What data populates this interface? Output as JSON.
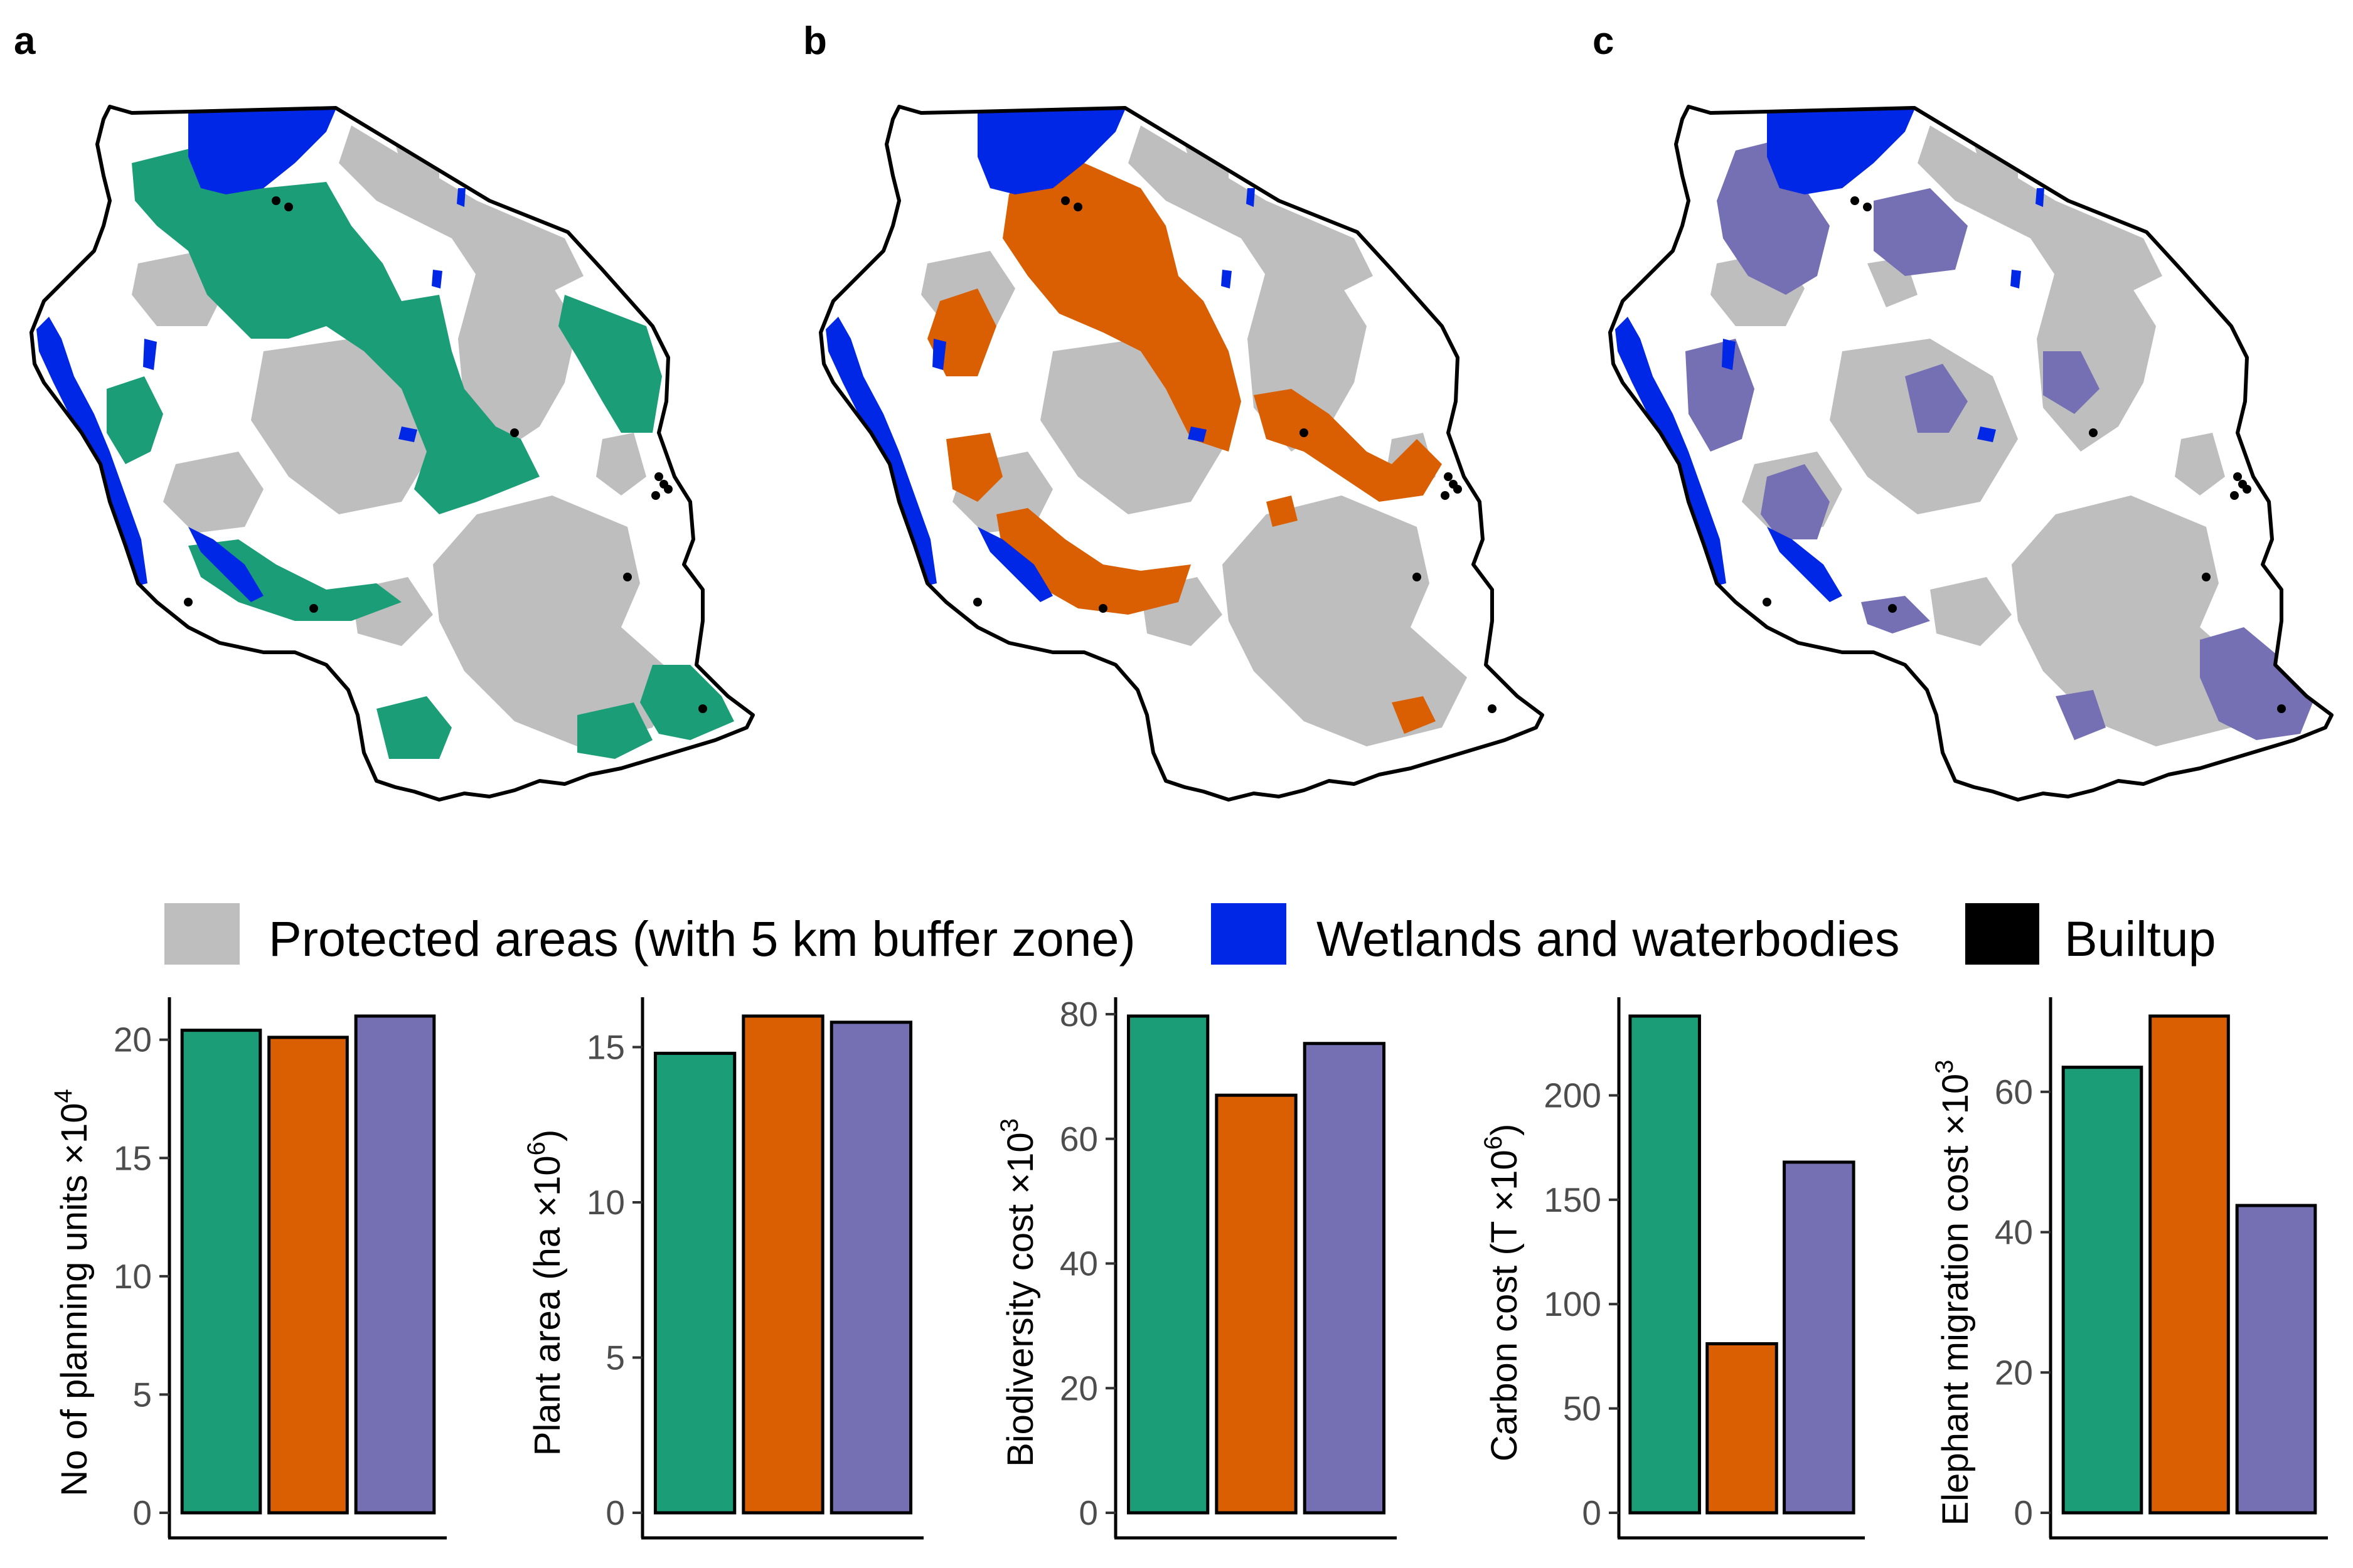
{
  "panels": {
    "a": {
      "letter": "a"
    },
    "b": {
      "letter": "b"
    },
    "c": {
      "letter": "c"
    }
  },
  "scenario_colors": [
    "#1b9e77",
    "#d95f02",
    "#7570b3"
  ],
  "map_colors": {
    "background": "#ffffff",
    "protected": "#bebebe",
    "water": "#0026e6",
    "builtup": "#000000",
    "outline": "#000000"
  },
  "legend": {
    "items": [
      {
        "label": "Protected areas (with 5 km buffer zone)",
        "color": "#bebebe"
      },
      {
        "label": "Wetlands and waterbodies",
        "color": "#0026e6"
      },
      {
        "label": "Builtup",
        "color": "#000000"
      }
    ]
  },
  "chart_data": [
    {
      "type": "bar",
      "ylabel": "No of planning units ×10^4",
      "ylabel_main": "No of planning units ",
      "ylabel_mult": "×10",
      "ylabel_exp": "4",
      "values": [
        20.4,
        20.1,
        21.0
      ],
      "ylim": [
        0,
        21.0
      ],
      "ticks": [
        0,
        5,
        10,
        15,
        20
      ],
      "tick_labels": [
        "0",
        "5",
        "10",
        "15",
        "20"
      ]
    },
    {
      "type": "bar",
      "ylabel": "Plant area (ha ×10^6)",
      "ylabel_main": "Plant area (ha ",
      "ylabel_mult": "×10",
      "ylabel_exp": "6",
      "ylabel_close": ")",
      "values": [
        14.8,
        16.0,
        15.8
      ],
      "ylim": [
        0,
        16.0
      ],
      "ticks": [
        0,
        5,
        10,
        15
      ],
      "tick_labels": [
        "0",
        "5",
        "10",
        "15"
      ]
    },
    {
      "type": "bar",
      "ylabel": "Biodiversity cost ×10^3",
      "ylabel_main": "Biodiversity cost ",
      "ylabel_mult": "×10",
      "ylabel_exp": "3",
      "values": [
        79.7,
        67.0,
        75.3
      ],
      "ylim": [
        0,
        79.7
      ],
      "ticks": [
        0,
        20,
        40,
        60,
        80
      ],
      "tick_labels": [
        "0",
        "20",
        "40",
        "60",
        "80"
      ]
    },
    {
      "type": "bar",
      "ylabel": "Carbon cost (T ×10^6)",
      "ylabel_main": "Carbon cost (T ",
      "ylabel_mult": "×10",
      "ylabel_exp": "6",
      "ylabel_close": ")",
      "values": [
        238,
        81,
        168
      ],
      "ylim": [
        0,
        238
      ],
      "ticks": [
        0,
        50,
        100,
        150,
        200
      ],
      "tick_labels": [
        "0",
        "50",
        "100",
        "150",
        "200"
      ]
    },
    {
      "type": "bar",
      "ylabel": "Elephant migration cost ×10^3",
      "ylabel_main": "Elephant migration cost ",
      "ylabel_mult": "×10",
      "ylabel_exp": "3",
      "values": [
        63.5,
        70.8,
        43.8
      ],
      "ylim": [
        0,
        70.8
      ],
      "ticks": [
        0,
        20,
        40,
        60
      ],
      "tick_labels": [
        "0",
        "20",
        "40",
        "60"
      ]
    }
  ]
}
